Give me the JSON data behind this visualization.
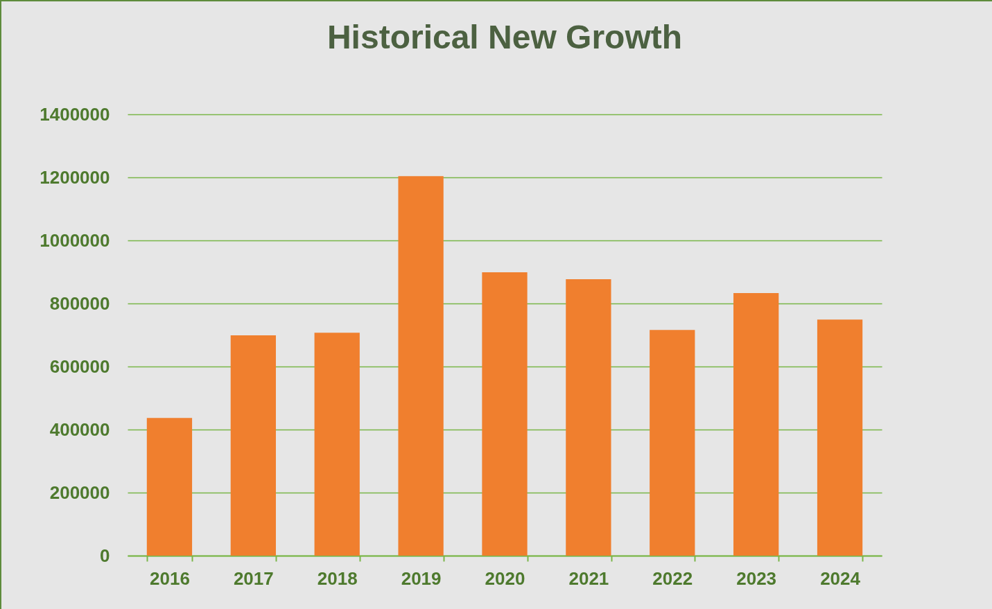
{
  "chart_data": {
    "type": "bar",
    "title": "Historical New Growth",
    "categories": [
      "2016",
      "2017",
      "2018",
      "2019",
      "2020",
      "2021",
      "2022",
      "2023",
      "2024"
    ],
    "values": [
      437000,
      699000,
      707000,
      1204000,
      899000,
      877000,
      716000,
      833000,
      749000
    ],
    "color": "#f07f2e",
    "ylim": [
      0,
      1400000
    ],
    "yticks": [
      0,
      200000,
      400000,
      600000,
      800000,
      1000000,
      1200000,
      1400000
    ],
    "grid": "y"
  }
}
